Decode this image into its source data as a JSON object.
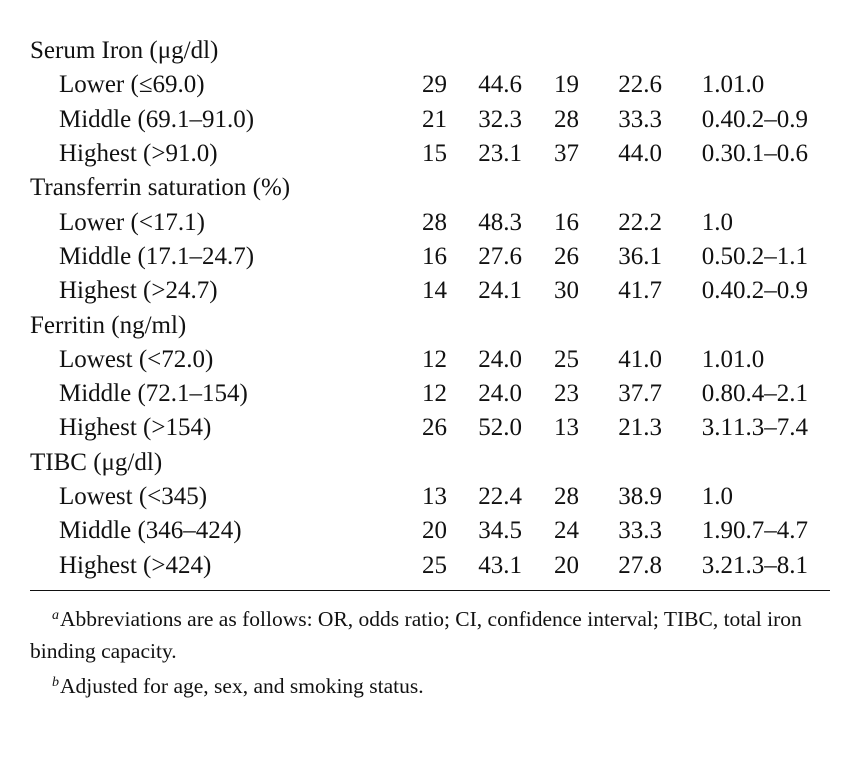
{
  "rows": [
    {
      "label": "Serum Iron (μg/dl)",
      "header": true
    },
    {
      "label": "Lower (≤69.0)",
      "v": [
        "29",
        "44.6",
        "19",
        "22.6",
        "1.0",
        "1.0"
      ]
    },
    {
      "label": "Middle (69.1–91.0)",
      "v": [
        "21",
        "32.3",
        "28",
        "33.3",
        "0.4",
        "0.2–0.9"
      ]
    },
    {
      "label": "Highest (>91.0)",
      "v": [
        "15",
        "23.1",
        "37",
        "44.0",
        "0.3",
        "0.1–0.6"
      ]
    },
    {
      "label": "Transferrin saturation (%)",
      "header": true
    },
    {
      "label": "Lower (<17.1)",
      "v": [
        "28",
        "48.3",
        "16",
        "22.2",
        "1.0",
        ""
      ]
    },
    {
      "label": "Middle (17.1–24.7)",
      "v": [
        "16",
        "27.6",
        "26",
        "36.1",
        "0.5",
        "0.2–1.1"
      ]
    },
    {
      "label": "Highest (>24.7)",
      "v": [
        "14",
        "24.1",
        "30",
        "41.7",
        "0.4",
        "0.2–0.9"
      ]
    },
    {
      "label": "Ferritin (ng/ml)",
      "header": true
    },
    {
      "label": "Lowest (<72.0)",
      "v": [
        "12",
        "24.0",
        "25",
        "41.0",
        "1.0",
        "1.0"
      ]
    },
    {
      "label": "Middle (72.1–154)",
      "v": [
        "12",
        "24.0",
        "23",
        "37.7",
        "0.8",
        "0.4–2.1"
      ]
    },
    {
      "label": "Highest (>154)",
      "v": [
        "26",
        "52.0",
        "13",
        "21.3",
        "3.1",
        "1.3–7.4"
      ]
    },
    {
      "label": "TIBC (μg/dl)",
      "header": true
    },
    {
      "label": "Lowest (<345)",
      "v": [
        "13",
        "22.4",
        "28",
        "38.9",
        "1.0",
        ""
      ]
    },
    {
      "label": "Middle (346–424)",
      "v": [
        "20",
        "34.5",
        "24",
        "33.3",
        "1.9",
        "0.7–4.7"
      ]
    },
    {
      "label": "Highest (>424)",
      "v": [
        "25",
        "43.1",
        "20",
        "27.8",
        "3.2",
        "1.3–8.1"
      ]
    }
  ],
  "footnotes": {
    "a_mark": "a",
    "a_text": "Abbreviations are as follows: OR, odds ratio; CI, confidence interval; TIBC, total iron binding capacity.",
    "b_mark": "b",
    "b_text": "Adjusted for age, sex, and smoking status."
  }
}
